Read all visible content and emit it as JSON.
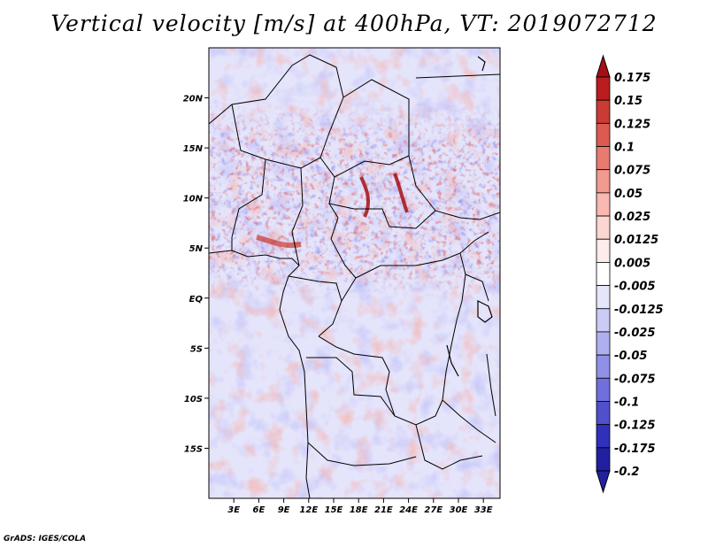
{
  "title": "Vertical velocity [m/s] at 400hPa, VT: 2019072712",
  "footer": "GrADS: IGES/COLA",
  "map": {
    "lon_range": [
      0,
      35
    ],
    "lat_range": [
      -20,
      25
    ],
    "lat_labels": [
      {
        "lat": 20,
        "label": "20N"
      },
      {
        "lat": 15,
        "label": "15N"
      },
      {
        "lat": 10,
        "label": "10N"
      },
      {
        "lat": 5,
        "label": "5N"
      },
      {
        "lat": 0,
        "label": "EQ"
      },
      {
        "lat": -5,
        "label": "5S"
      },
      {
        "lat": -10,
        "label": "10S"
      },
      {
        "lat": -15,
        "label": "15S"
      }
    ],
    "lon_labels": [
      {
        "lon": 3,
        "label": "3E"
      },
      {
        "lon": 6,
        "label": "6E"
      },
      {
        "lon": 9,
        "label": "9E"
      },
      {
        "lon": 12,
        "label": "12E"
      },
      {
        "lon": 15,
        "label": "15E"
      },
      {
        "lon": 18,
        "label": "18E"
      },
      {
        "lon": 21,
        "label": "21E"
      },
      {
        "lon": 24,
        "label": "24E"
      },
      {
        "lon": 27,
        "label": "27E"
      },
      {
        "lon": 30,
        "label": "30E"
      },
      {
        "lon": 33,
        "label": "33E"
      }
    ]
  },
  "colorbar": {
    "levels": [
      {
        "label": "0.175",
        "color": "#a50f15"
      },
      {
        "label": "0.15",
        "color": "#bb1c1f"
      },
      {
        "label": "0.125",
        "color": "#cb3a35"
      },
      {
        "label": "0.1",
        "color": "#dc5a50"
      },
      {
        "label": "0.075",
        "color": "#e87b70"
      },
      {
        "label": "0.05",
        "color": "#f19a90"
      },
      {
        "label": "0.025",
        "color": "#f8b9b0"
      },
      {
        "label": "0.0125",
        "color": "#fcd6d0"
      },
      {
        "label": "0.005",
        "color": "#fdecea"
      },
      {
        "label": "-0.005",
        "color": "#ffffff"
      },
      {
        "label": "-0.0125",
        "color": "#e6e6fb"
      },
      {
        "label": "-0.025",
        "color": "#cbcbf6"
      },
      {
        "label": "-0.05",
        "color": "#afaff0"
      },
      {
        "label": "-0.075",
        "color": "#9090e6"
      },
      {
        "label": "-0.1",
        "color": "#7070dc"
      },
      {
        "label": "-0.125",
        "color": "#5050cc"
      },
      {
        "label": "-0.175",
        "color": "#3030bb"
      },
      {
        "label": "-0.2",
        "color": "#2020a0"
      }
    ],
    "top_color": "#a50f15",
    "bottom_color": "#2020a0"
  }
}
